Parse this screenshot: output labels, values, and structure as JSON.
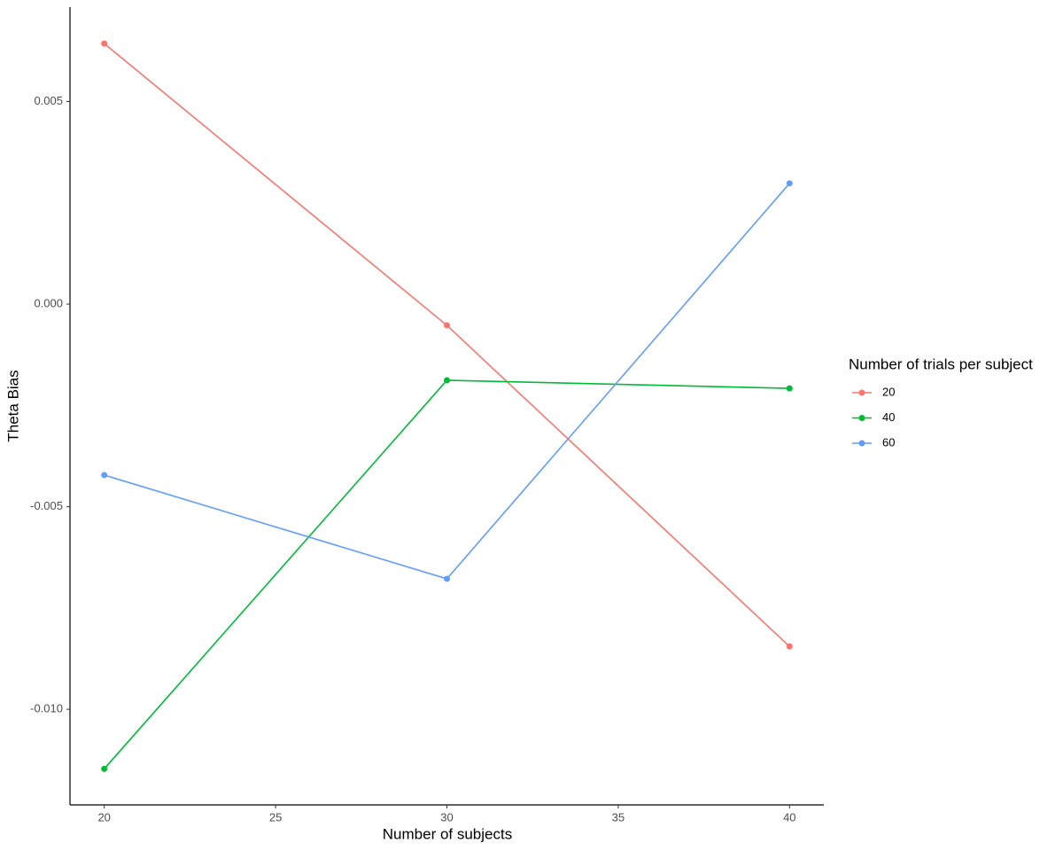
{
  "chart_data": {
    "type": "line",
    "x_label": "Number of subjects",
    "y_label": "Theta Bias",
    "x": [
      20,
      30,
      40
    ],
    "series": [
      {
        "name": "20",
        "color": "#F8766D",
        "values": [
          0.00643,
          -0.000525,
          -0.00845
        ]
      },
      {
        "name": "40",
        "color": "#00BA38",
        "values": [
          -0.01147,
          -0.00188,
          -0.00208
        ]
      },
      {
        "name": "60",
        "color": "#619CFF",
        "values": [
          -0.00422,
          -0.00678,
          0.00298
        ]
      }
    ],
    "xlim": [
      19,
      41
    ],
    "xticks": [
      20,
      25,
      30,
      35,
      40
    ],
    "ylim": [
      -0.01236,
      0.00733
    ],
    "yticks": [
      {
        "value": -0.01,
        "label": "-0.010"
      },
      -0.005,
      {
        "value": 0,
        "label": "0.000"
      },
      0.005
    ],
    "legend_title": "Number of trials per subject",
    "legend_position": "right",
    "grid": false
  }
}
